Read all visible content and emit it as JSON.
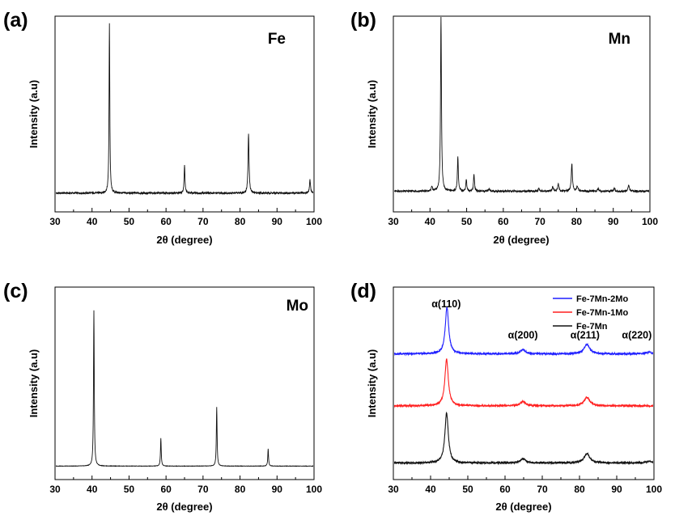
{
  "chart_data": [
    {
      "type": "line",
      "panel": "(a)",
      "label": "Fe",
      "xlabel": "2θ (degree)",
      "ylabel": "Intensity (a.u)",
      "xlim": [
        30,
        100
      ],
      "ylim": [
        0,
        100
      ],
      "x_ticks": [
        30,
        40,
        50,
        60,
        70,
        80,
        90,
        100
      ],
      "baseline": 3,
      "peaks": [
        {
          "x": 44.7,
          "y": 100,
          "w": 0.12
        },
        {
          "x": 65.0,
          "y": 16,
          "w": 0.14
        },
        {
          "x": 82.3,
          "y": 35,
          "w": 0.16
        },
        {
          "x": 98.9,
          "y": 8,
          "w": 0.16
        }
      ]
    },
    {
      "type": "line",
      "panel": "(b)",
      "label": "Mn",
      "xlabel": "2θ (degree)",
      "ylabel": "Intensity (a.u)",
      "xlim": [
        30,
        100
      ],
      "ylim": [
        0,
        100
      ],
      "x_ticks": [
        30,
        40,
        50,
        60,
        70,
        80,
        90,
        100
      ],
      "baseline": 4,
      "peaks": [
        {
          "x": 40.5,
          "y": 3,
          "w": 0.15
        },
        {
          "x": 43.0,
          "y": 100,
          "w": 0.15
        },
        {
          "x": 47.6,
          "y": 20,
          "w": 0.15
        },
        {
          "x": 49.9,
          "y": 7,
          "w": 0.15
        },
        {
          "x": 52.0,
          "y": 10,
          "w": 0.15
        },
        {
          "x": 56.1,
          "y": 1.5,
          "w": 0.2
        },
        {
          "x": 69.7,
          "y": 1.5,
          "w": 0.2
        },
        {
          "x": 73.5,
          "y": 2.5,
          "w": 0.2
        },
        {
          "x": 75.0,
          "y": 4,
          "w": 0.2
        },
        {
          "x": 78.7,
          "y": 16,
          "w": 0.18
        },
        {
          "x": 80.2,
          "y": 3,
          "w": 0.2
        },
        {
          "x": 85.9,
          "y": 1.5,
          "w": 0.2
        },
        {
          "x": 90.3,
          "y": 1.5,
          "w": 0.2
        },
        {
          "x": 94.2,
          "y": 3.5,
          "w": 0.2
        }
      ]
    },
    {
      "type": "line",
      "panel": "(c)",
      "label": "Mo",
      "xlabel": "2θ (degree)",
      "ylabel": "Intensity (a.u)",
      "xlim": [
        30,
        100
      ],
      "ylim": [
        0,
        100
      ],
      "x_ticks": [
        30,
        40,
        50,
        60,
        70,
        80,
        90,
        100
      ],
      "baseline": 0,
      "peaks": [
        {
          "x": 40.5,
          "y": 100,
          "w": 0.12
        },
        {
          "x": 58.6,
          "y": 18,
          "w": 0.12
        },
        {
          "x": 73.7,
          "y": 38,
          "w": 0.12
        },
        {
          "x": 87.6,
          "y": 11,
          "w": 0.12
        }
      ]
    },
    {
      "type": "line",
      "panel": "(d)",
      "xlabel": "2θ (degree)",
      "ylabel": "Intensity (a.u)",
      "xlim": [
        30,
        100
      ],
      "ylim": [
        0,
        100
      ],
      "x_ticks": [
        30,
        40,
        50,
        60,
        70,
        80,
        90,
        100
      ],
      "legend_position": "top-right",
      "series": [
        {
          "name": "Fe-7Mn-2Mo",
          "color": "#1f1fff",
          "offset": 67,
          "peaks": [
            {
              "x": 44.4,
              "y": 27,
              "w": 0.55
            },
            {
              "x": 64.8,
              "y": 2.5,
              "w": 0.8
            },
            {
              "x": 82.0,
              "y": 5.5,
              "w": 0.9
            },
            {
              "x": 98.7,
              "y": 1,
              "w": 0.9
            }
          ]
        },
        {
          "name": "Fe-7Mn-1Mo",
          "color": "#ff1f1f",
          "offset": 37,
          "peaks": [
            {
              "x": 44.3,
              "y": 27,
              "w": 0.55
            },
            {
              "x": 64.8,
              "y": 2.5,
              "w": 0.8
            },
            {
              "x": 82.0,
              "y": 5,
              "w": 0.9
            }
          ]
        },
        {
          "name": "Fe-7Mn",
          "color": "#111111",
          "offset": 4,
          "peaks": [
            {
              "x": 44.3,
              "y": 29,
              "w": 0.55
            },
            {
              "x": 64.8,
              "y": 2.5,
              "w": 0.8
            },
            {
              "x": 82.0,
              "y": 5.5,
              "w": 0.9
            },
            {
              "x": 98.7,
              "y": 1,
              "w": 0.9
            }
          ]
        }
      ],
      "annotations": [
        {
          "text": "α(110)",
          "x": 44.2,
          "y": 94
        },
        {
          "text": "α(200)",
          "x": 64.8,
          "y": 76
        },
        {
          "text": "α(211)",
          "x": 81.5,
          "y": 76
        },
        {
          "text": "α(220)",
          "x": 95.4,
          "y": 76
        }
      ]
    }
  ]
}
